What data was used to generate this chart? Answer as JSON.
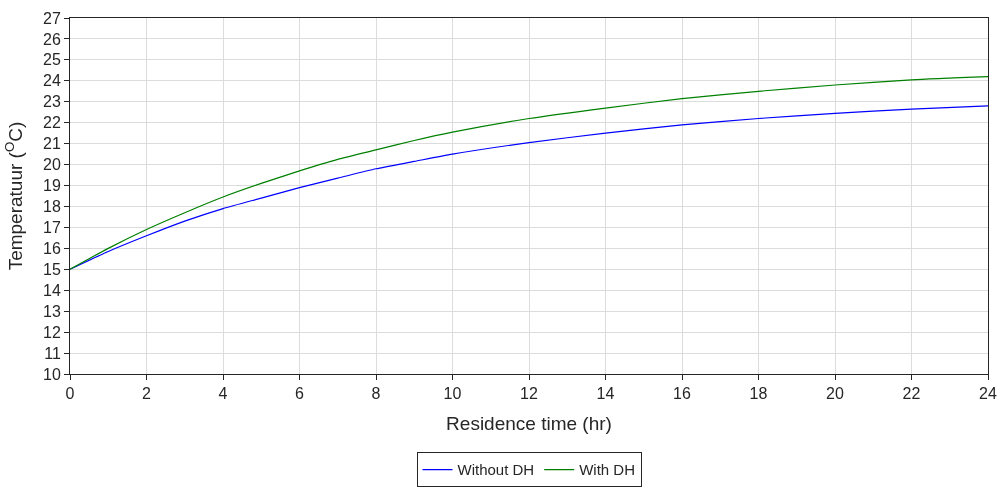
{
  "chart_data": {
    "type": "line",
    "xlabel": "Residence time (hr)",
    "ylabel": "Temperatuur ($^{O}$C)",
    "x": [
      0,
      1,
      2,
      3,
      4,
      5,
      6,
      7,
      8,
      9,
      10,
      12,
      14,
      16,
      18,
      20,
      22,
      24
    ],
    "series": [
      {
        "name": "Without DH",
        "color": "#0000ff",
        "values": [
          15,
          15.85,
          16.6,
          17.3,
          17.9,
          18.4,
          18.9,
          19.35,
          19.8,
          20.15,
          20.5,
          21.05,
          21.5,
          21.9,
          22.2,
          22.45,
          22.65,
          22.8
        ]
      },
      {
        "name": "With DH",
        "color": "#008000",
        "values": [
          15,
          16.0,
          16.9,
          17.7,
          18.45,
          19.1,
          19.7,
          20.25,
          20.7,
          21.15,
          21.55,
          22.2,
          22.7,
          23.15,
          23.5,
          23.8,
          24.05,
          24.2
        ]
      }
    ],
    "xlim": [
      0,
      24
    ],
    "xticks": [
      0,
      2,
      4,
      6,
      8,
      10,
      12,
      14,
      16,
      18,
      20,
      22,
      24
    ],
    "ylim": [
      10,
      27
    ],
    "yticks": [
      10,
      11,
      12,
      13,
      14,
      15,
      16,
      17,
      18,
      19,
      20,
      21,
      22,
      23,
      24,
      25,
      26,
      27
    ],
    "grid": true,
    "legend": "bottom",
    "marker": "none",
    "line_style": "solid"
  }
}
